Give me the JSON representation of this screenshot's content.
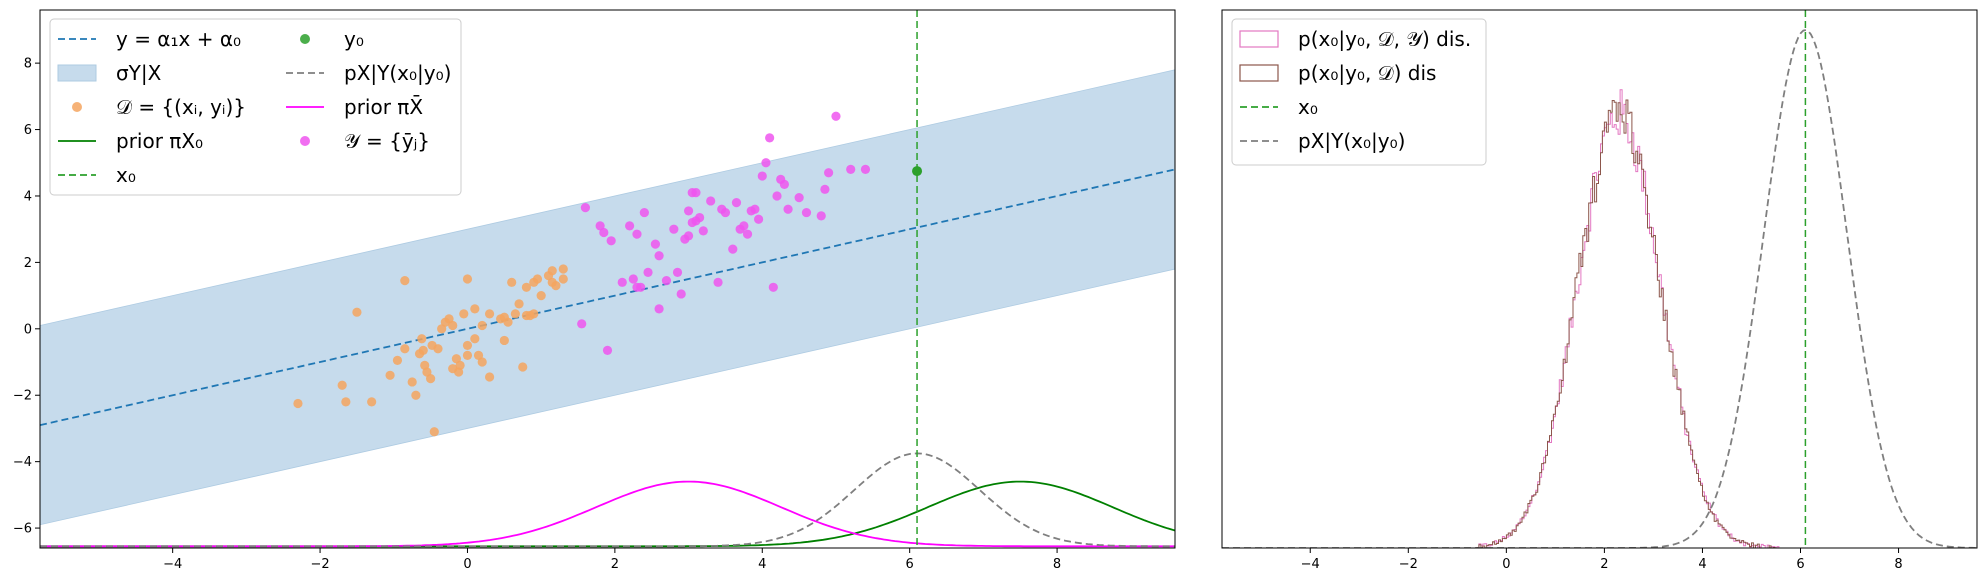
{
  "chart_data": [
    {
      "type": "scatter",
      "title": "",
      "xlabel": "",
      "ylabel": "",
      "xlim": [
        -5.8,
        9.6
      ],
      "ylim": [
        -6.6,
        9.6
      ],
      "xticks": [
        -4,
        -2,
        0,
        2,
        4,
        6,
        8
      ],
      "yticks": [
        -6,
        -4,
        -2,
        0,
        2,
        4,
        6,
        8
      ],
      "grid": false,
      "legend_placement": "top-left",
      "legend": [
        {
          "label": "y = α₁x + α₀",
          "kind": "dashed-line",
          "color": "#1f77b4"
        },
        {
          "label": "σY|X",
          "kind": "band",
          "color": "#c6dbec"
        },
        {
          "label": "𝒟 = {(xᵢ, yᵢ)}",
          "kind": "marker",
          "color": "#f5a55f"
        },
        {
          "label": "prior πX₀",
          "kind": "line",
          "color": "#008000"
        },
        {
          "label": "x₀",
          "kind": "dashed-line",
          "color": "#2ca02c"
        },
        {
          "label": "y₀",
          "kind": "marker",
          "color": "#2ca02c"
        },
        {
          "label": "pX|Y(x₀|y₀)",
          "kind": "dashed-line",
          "color": "#7f7f7f"
        },
        {
          "label": "prior πX̄",
          "kind": "line",
          "color": "#ff00ff"
        },
        {
          "label": "𝒴 = {ȳⱼ}",
          "kind": "marker",
          "color": "#ee55ee"
        }
      ],
      "regression_line": {
        "slope": 0.5,
        "intercept": 0.0,
        "color": "#1f77b4"
      },
      "sigma_band_halfwidth": 3.0,
      "x0": 6.1,
      "y0_point": {
        "x": 6.1,
        "y": 4.75
      },
      "offset_curves": [
        {
          "name": "prior πX₀",
          "color": "#008000",
          "mu": 7.5,
          "sigma": 1.25,
          "peak_y": -4.6,
          "dashed": false
        },
        {
          "name": "prior πX̄",
          "color": "#ff00ff",
          "mu": 3.0,
          "sigma": 1.25,
          "peak_y": -4.6,
          "dashed": false
        },
        {
          "name": "pX|Y(x₀|y₀)",
          "color": "#7f7f7f",
          "mu": 6.1,
          "sigma": 0.85,
          "peak_y": -3.75,
          "dashed": true
        }
      ],
      "curve_baseline": -6.55,
      "D_points": [
        [
          -2.3,
          -2.25
        ],
        [
          -1.7,
          -1.7
        ],
        [
          -1.65,
          -2.2
        ],
        [
          -1.5,
          0.5
        ],
        [
          -1.3,
          -2.2
        ],
        [
          -1.05,
          -1.4
        ],
        [
          -0.95,
          -0.95
        ],
        [
          -0.85,
          1.45
        ],
        [
          -0.85,
          -0.6
        ],
        [
          -0.75,
          -1.6
        ],
        [
          -0.7,
          -2.0
        ],
        [
          -0.65,
          -0.75
        ],
        [
          -0.62,
          -0.3
        ],
        [
          -0.6,
          -0.65
        ],
        [
          -0.58,
          -1.1
        ],
        [
          -0.55,
          -1.3
        ],
        [
          -0.5,
          -1.5
        ],
        [
          -0.48,
          -0.5
        ],
        [
          -0.45,
          -3.1
        ],
        [
          -0.4,
          -0.6
        ],
        [
          -0.35,
          0.0
        ],
        [
          -0.3,
          0.2
        ],
        [
          -0.25,
          0.3
        ],
        [
          -0.2,
          0.1
        ],
        [
          -0.2,
          -1.2
        ],
        [
          -0.15,
          -0.9
        ],
        [
          -0.12,
          -1.3
        ],
        [
          -0.1,
          -1.1
        ],
        [
          -0.05,
          0.45
        ],
        [
          0.0,
          -0.5
        ],
        [
          0.0,
          -0.8
        ],
        [
          0.0,
          1.5
        ],
        [
          0.1,
          -0.3
        ],
        [
          0.1,
          0.6
        ],
        [
          0.15,
          -0.8
        ],
        [
          0.2,
          0.1
        ],
        [
          0.2,
          -1.0
        ],
        [
          0.3,
          0.45
        ],
        [
          0.3,
          -1.45
        ],
        [
          0.45,
          0.3
        ],
        [
          0.5,
          -0.35
        ],
        [
          0.5,
          0.35
        ],
        [
          0.55,
          0.2
        ],
        [
          0.6,
          1.4
        ],
        [
          0.65,
          0.45
        ],
        [
          0.7,
          0.75
        ],
        [
          0.75,
          -1.15
        ],
        [
          0.8,
          1.25
        ],
        [
          0.8,
          0.4
        ],
        [
          0.85,
          0.4
        ],
        [
          0.9,
          1.4
        ],
        [
          0.95,
          1.5
        ],
        [
          1.0,
          1.0
        ],
        [
          1.1,
          1.6
        ],
        [
          1.15,
          1.75
        ],
        [
          1.2,
          1.3
        ],
        [
          1.3,
          1.5
        ],
        [
          1.3,
          1.8
        ],
        [
          1.15,
          1.4
        ],
        [
          0.9,
          0.45
        ]
      ],
      "Y_points": [
        [
          1.55,
          0.15
        ],
        [
          1.6,
          3.65
        ],
        [
          1.8,
          3.1
        ],
        [
          1.85,
          2.9
        ],
        [
          1.9,
          -0.65
        ],
        [
          1.95,
          2.65
        ],
        [
          2.1,
          1.4
        ],
        [
          2.2,
          3.1
        ],
        [
          2.25,
          1.5
        ],
        [
          2.3,
          1.25
        ],
        [
          2.35,
          1.25
        ],
        [
          2.4,
          3.5
        ],
        [
          2.45,
          1.7
        ],
        [
          2.55,
          2.55
        ],
        [
          2.6,
          2.2
        ],
        [
          2.6,
          0.6
        ],
        [
          2.7,
          1.45
        ],
        [
          2.8,
          3.0
        ],
        [
          2.85,
          1.7
        ],
        [
          2.9,
          1.05
        ],
        [
          2.95,
          2.7
        ],
        [
          3.0,
          2.8
        ],
        [
          3.0,
          3.55
        ],
        [
          3.05,
          4.1
        ],
        [
          3.1,
          4.1
        ],
        [
          3.1,
          3.25
        ],
        [
          3.15,
          3.35
        ],
        [
          3.2,
          2.95
        ],
        [
          3.3,
          3.85
        ],
        [
          3.4,
          1.4
        ],
        [
          3.5,
          3.5
        ],
        [
          3.6,
          2.4
        ],
        [
          3.65,
          3.8
        ],
        [
          3.7,
          3.0
        ],
        [
          3.75,
          3.1
        ],
        [
          3.8,
          2.85
        ],
        [
          3.85,
          3.55
        ],
        [
          3.9,
          3.6
        ],
        [
          3.95,
          3.3
        ],
        [
          4.0,
          4.6
        ],
        [
          4.05,
          5.0
        ],
        [
          4.1,
          5.75
        ],
        [
          4.15,
          1.25
        ],
        [
          4.2,
          4.0
        ],
        [
          4.3,
          4.35
        ],
        [
          4.35,
          3.6
        ],
        [
          4.5,
          3.95
        ],
        [
          4.6,
          3.5
        ],
        [
          4.8,
          3.4
        ],
        [
          4.85,
          4.2
        ],
        [
          4.9,
          4.7
        ],
        [
          5.0,
          6.4
        ],
        [
          5.2,
          4.8
        ],
        [
          5.4,
          4.8
        ],
        [
          3.45,
          3.6
        ],
        [
          4.25,
          4.5
        ],
        [
          2.3,
          2.85
        ],
        [
          3.05,
          3.2
        ]
      ]
    },
    {
      "type": "line",
      "title": "",
      "xlabel": "",
      "ylabel": "",
      "xlim": [
        -5.8,
        9.6
      ],
      "ylim": [
        0.0,
        1.08
      ],
      "xticks": [
        -4,
        -2,
        0,
        2,
        4,
        6,
        8
      ],
      "yticks": [],
      "grid": false,
      "legend_placement": "top-left",
      "legend": [
        {
          "label": "p(x₀|y₀, 𝒟, 𝒴) dis.",
          "kind": "box",
          "color": "#e377c2"
        },
        {
          "label": "p(x₀|y₀, 𝒟) dis",
          "kind": "box",
          "color": "#8c564b"
        },
        {
          "label": "x₀",
          "kind": "dashed-line",
          "color": "#2ca02c"
        },
        {
          "label": "pX|Y(x₀|y₀)",
          "kind": "dashed-line",
          "color": "#7f7f7f"
        }
      ],
      "x0": 6.1,
      "series": [
        {
          "name": "p(x₀|y₀, 𝒟, 𝒴) dis.",
          "type": "step-histogram",
          "color": "#e377c2",
          "mu": 2.3,
          "sigma": 0.85,
          "peak": 0.87
        },
        {
          "name": "p(x₀|y₀, 𝒟) dis",
          "type": "step-histogram",
          "color": "#8c564b",
          "mu": 2.3,
          "sigma": 0.85,
          "peak": 0.87
        },
        {
          "name": "pX|Y(x₀|y₀)",
          "type": "gaussian",
          "color": "#7f7f7f",
          "mu": 6.1,
          "sigma": 0.85,
          "peak": 1.04,
          "dashed": true
        }
      ]
    }
  ]
}
